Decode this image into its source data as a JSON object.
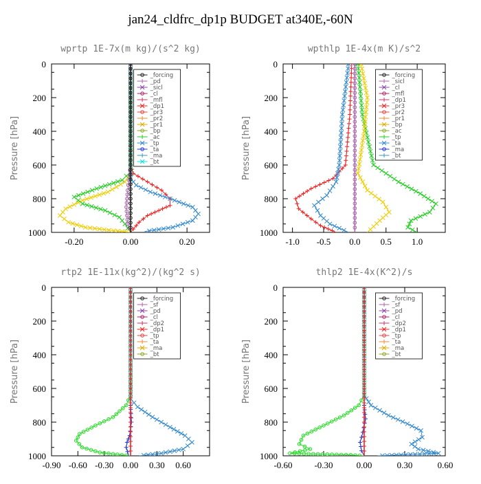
{
  "figure": {
    "title": "jan24_cldfrc_dp1p  BUDGET at340E,-60N"
  },
  "chart_data": [
    {
      "type": "line",
      "title": "wprtp   1E-7x(m kg)/(s^2 kg)",
      "ylabel": "Pressure [hPa]",
      "xlim": [
        -0.28,
        0.28
      ],
      "ylim": [
        1000,
        0
      ],
      "xticks": [
        -0.2,
        0.0,
        0.2
      ],
      "xtick_labels": [
        "-0.20",
        "0.00",
        "0.20"
      ],
      "yticks": [
        0,
        200,
        400,
        600,
        800,
        1000
      ],
      "ytick_labels": [
        "0",
        "200",
        "400",
        "600",
        "800",
        "1000"
      ],
      "legend": [
        "_forcing",
        "_pd",
        "_sicl",
        "_cl",
        "_mfl",
        "_dp1",
        "_pr3",
        "_pr2",
        "_pr1",
        "_bp",
        "_ac",
        "_tp",
        "_ta",
        "_ma",
        "_bt"
      ],
      "series": [
        {
          "name": "_dp1",
          "color": "#ee2222",
          "marker": "+",
          "points": [
            [
              0,
              0
            ],
            [
              0,
              600
            ],
            [
              0.01,
              650
            ],
            [
              0.06,
              700
            ],
            [
              0.11,
              750
            ],
            [
              0.14,
              800
            ],
            [
              0.14,
              840
            ],
            [
              0.1,
              870
            ],
            [
              0.06,
              900
            ],
            [
              0.03,
              940
            ],
            [
              0.01,
              980
            ],
            [
              0,
              1000
            ]
          ]
        },
        {
          "name": "_pr1",
          "color": "#eecc00",
          "marker": "x",
          "points": [
            [
              0,
              0
            ],
            [
              0,
              650
            ],
            [
              -0.02,
              700
            ],
            [
              -0.08,
              760
            ],
            [
              -0.17,
              810
            ],
            [
              -0.23,
              860
            ],
            [
              -0.25,
              900
            ],
            [
              -0.22,
              940
            ],
            [
              -0.16,
              970
            ],
            [
              -0.06,
              990
            ],
            [
              0,
              1000
            ]
          ]
        },
        {
          "name": "_ac",
          "color": "#22cc22",
          "marker": "x",
          "points": [
            [
              0,
              0
            ],
            [
              0,
              640
            ],
            [
              -0.03,
              690
            ],
            [
              -0.12,
              740
            ],
            [
              -0.2,
              790
            ],
            [
              -0.17,
              830
            ],
            [
              -0.09,
              870
            ],
            [
              -0.04,
              910
            ],
            [
              -0.02,
              950
            ],
            [
              0,
              1000
            ]
          ]
        },
        {
          "name": "_tp",
          "color": "#3388cc",
          "marker": "x",
          "points": [
            [
              0,
              0
            ],
            [
              0,
              680
            ],
            [
              0.02,
              720
            ],
            [
              0.07,
              760
            ],
            [
              0.14,
              800
            ],
            [
              0.22,
              850
            ],
            [
              0.24,
              890
            ],
            [
              0.22,
              930
            ],
            [
              0.15,
              970
            ],
            [
              0.05,
              995
            ]
          ]
        },
        {
          "name": "_pd",
          "color": "#aa66aa",
          "marker": "o",
          "points": [
            [
              0,
              0
            ],
            [
              0,
              600
            ],
            [
              -0.01,
              750
            ],
            [
              -0.015,
              850
            ],
            [
              -0.01,
              950
            ],
            [
              0,
              1000
            ]
          ]
        },
        {
          "name": "_forcing",
          "color": "#222222",
          "marker": "o",
          "points": [
            [
              0,
              0
            ],
            [
              0,
              1000
            ]
          ]
        }
      ]
    },
    {
      "type": "line",
      "title": "wpthlp   1E-4x(m K)/s^2",
      "ylabel": "Pressure [hPa]",
      "xlim": [
        -1.15,
        1.45
      ],
      "ylim": [
        1000,
        0
      ],
      "xticks": [
        -1.0,
        -0.5,
        0.0,
        0.5,
        1.0
      ],
      "xtick_labels": [
        "-1.0",
        "-0.5",
        "0.0",
        "0.5",
        "1.0"
      ],
      "yticks": [
        0,
        200,
        400,
        600,
        800,
        1000
      ],
      "ytick_labels": [
        "0",
        "200",
        "400",
        "600",
        "800",
        "1000"
      ],
      "legend": [
        "_forcing",
        "_sicl",
        "_cl",
        "_mfl",
        "_dp1",
        "_pr3",
        "_pr2",
        "_pr1",
        "_bp",
        "_ac",
        "_tp",
        "_ta",
        "_ma",
        "_bt"
      ],
      "series": [
        {
          "name": "_dp1",
          "color": "#ee2222",
          "marker": "+",
          "points": [
            [
              -0.05,
              0
            ],
            [
              -0.08,
              300
            ],
            [
              -0.15,
              600
            ],
            [
              -0.35,
              680
            ],
            [
              -0.7,
              740
            ],
            [
              -0.95,
              800
            ],
            [
              -0.9,
              860
            ],
            [
              -0.7,
              920
            ],
            [
              -0.55,
              960
            ],
            [
              -0.3,
              1000
            ]
          ]
        },
        {
          "name": "_ac",
          "color": "#22cc22",
          "marker": "x",
          "points": [
            [
              0.05,
              0
            ],
            [
              0.12,
              300
            ],
            [
              0.3,
              600
            ],
            [
              0.7,
              700
            ],
            [
              1.05,
              770
            ],
            [
              1.3,
              830
            ],
            [
              1.2,
              880
            ],
            [
              0.9,
              930
            ],
            [
              0.85,
              970
            ],
            [
              1.0,
              1000
            ]
          ]
        },
        {
          "name": "_tp",
          "color": "#3388cc",
          "marker": "x",
          "points": [
            [
              -0.1,
              0
            ],
            [
              -0.2,
              300
            ],
            [
              -0.25,
              600
            ],
            [
              -0.3,
              700
            ],
            [
              -0.45,
              780
            ],
            [
              -0.65,
              840
            ],
            [
              -0.55,
              900
            ],
            [
              -0.4,
              950
            ],
            [
              -0.1,
              1000
            ]
          ]
        },
        {
          "name": "_pr1",
          "color": "#eecc00",
          "marker": "x",
          "points": [
            [
              0.1,
              0
            ],
            [
              0.2,
              200
            ],
            [
              0.15,
              400
            ],
            [
              0.05,
              650
            ],
            [
              0.2,
              750
            ],
            [
              0.45,
              820
            ],
            [
              0.55,
              880
            ],
            [
              0.4,
              930
            ],
            [
              0.2,
              1000
            ]
          ]
        },
        {
          "name": "_forcing",
          "color": "#aa66aa",
          "marker": "o",
          "points": [
            [
              0,
              0
            ],
            [
              0,
              1000
            ]
          ]
        }
      ]
    },
    {
      "type": "line",
      "title": "rtp2   1E-11x(kg^2)/(kg^2 s)",
      "ylabel": "Pressure [hPa]",
      "xlim": [
        -0.9,
        0.9
      ],
      "ylim": [
        1000,
        0
      ],
      "xticks": [
        -0.9,
        -0.6,
        -0.3,
        0.0,
        0.3,
        0.6
      ],
      "xtick_labels": [
        "-0.90",
        "-0.60",
        "-0.30",
        "0.00",
        "0.30",
        "0.60"
      ],
      "yticks": [
        0,
        200,
        400,
        600,
        800,
        1000
      ],
      "ytick_labels": [
        "0",
        "200",
        "400",
        "600",
        "800",
        "1000"
      ],
      "legend": [
        "_forcing",
        "_sf",
        "_pd",
        "_cl",
        "_dp2",
        "_dp1",
        "_tp",
        "_ta",
        "_ma",
        "_bt"
      ],
      "series": [
        {
          "name": "_dp1",
          "color": "#22dd22",
          "marker": "o",
          "points": [
            [
              0,
              0
            ],
            [
              0,
              640
            ],
            [
              -0.05,
              700
            ],
            [
              -0.2,
              770
            ],
            [
              -0.4,
              820
            ],
            [
              -0.58,
              870
            ],
            [
              -0.62,
              910
            ],
            [
              -0.55,
              950
            ],
            [
              -0.35,
              980
            ],
            [
              -0.1,
              995
            ],
            [
              0,
              1000
            ]
          ]
        },
        {
          "name": "_tp",
          "color": "#3388cc",
          "marker": "x",
          "points": [
            [
              0,
              0
            ],
            [
              0,
              660
            ],
            [
              0.08,
              710
            ],
            [
              0.25,
              770
            ],
            [
              0.45,
              830
            ],
            [
              0.62,
              880
            ],
            [
              0.7,
              920
            ],
            [
              0.6,
              960
            ],
            [
              0.35,
              985
            ],
            [
              0.1,
              1000
            ]
          ]
        },
        {
          "name": "_ta",
          "color": "#2233cc",
          "marker": "+",
          "points": [
            [
              0,
              700
            ],
            [
              0.01,
              800
            ],
            [
              -0.01,
              880
            ],
            [
              -0.04,
              920
            ],
            [
              -0.05,
              950
            ],
            [
              -0.02,
              1000
            ]
          ]
        },
        {
          "name": "_forcing",
          "color": "#ee2222",
          "marker": "+",
          "points": [
            [
              0,
              0
            ],
            [
              0,
              1000
            ]
          ]
        }
      ]
    },
    {
      "type": "line",
      "title": "thlp2   1E-4x(K^2)/s",
      "ylabel": "Pressure [hPa]",
      "xlim": [
        -0.6,
        0.6
      ],
      "ylim": [
        1000,
        0
      ],
      "xticks": [
        -0.6,
        -0.3,
        0.0,
        0.3,
        0.6
      ],
      "xtick_labels": [
        "-0.60",
        "-0.30",
        "0.00",
        "0.30",
        "0.60"
      ],
      "yticks": [
        0,
        200,
        400,
        600,
        800,
        1000
      ],
      "ytick_labels": [
        "0",
        "200",
        "400",
        "600",
        "800",
        "1000"
      ],
      "legend": [
        "_forcing",
        "_sf",
        "_pd",
        "_cl",
        "_dp2",
        "_dp1",
        "_tp",
        "_ta",
        "_ma",
        "_bt"
      ],
      "series": [
        {
          "name": "_dp1",
          "color": "#22dd22",
          "marker": "o",
          "points": [
            [
              0,
              0
            ],
            [
              0,
              640
            ],
            [
              -0.04,
              700
            ],
            [
              -0.15,
              760
            ],
            [
              -0.3,
              820
            ],
            [
              -0.45,
              880
            ],
            [
              -0.48,
              930
            ],
            [
              -0.4,
              960
            ],
            [
              -0.55,
              985
            ],
            [
              -0.1,
              995
            ],
            [
              0,
              1000
            ]
          ]
        },
        {
          "name": "_tp",
          "color": "#3388cc",
          "marker": "x",
          "points": [
            [
              0,
              0
            ],
            [
              0,
              640
            ],
            [
              0.05,
              700
            ],
            [
              0.18,
              760
            ],
            [
              0.32,
              810
            ],
            [
              0.42,
              850
            ],
            [
              0.43,
              890
            ],
            [
              0.35,
              930
            ],
            [
              0.4,
              960
            ],
            [
              0.55,
              985
            ],
            [
              0.1,
              1000
            ]
          ]
        },
        {
          "name": "_ta",
          "color": "#2233cc",
          "marker": "+",
          "points": [
            [
              0,
              700
            ],
            [
              0.01,
              780
            ],
            [
              -0.01,
              860
            ],
            [
              -0.03,
              920
            ],
            [
              -0.02,
              970
            ],
            [
              0,
              1000
            ]
          ]
        },
        {
          "name": "_forcing",
          "color": "#ee2222",
          "marker": "+",
          "points": [
            [
              0,
              0
            ],
            [
              0,
              1000
            ]
          ]
        }
      ]
    }
  ]
}
